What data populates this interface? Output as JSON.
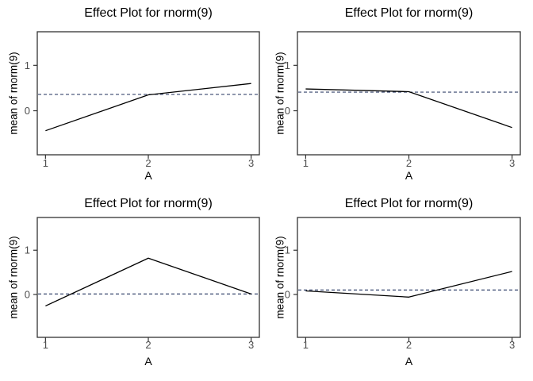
{
  "figure": {
    "background": "#ffffff",
    "line_color": "#000000",
    "reference_line_color": "#37466e",
    "panel_border_color": "#333333",
    "tick_color": "#333333",
    "tick_label_color": "#4d4d4d",
    "title_color": "#000000"
  },
  "chart_data": [
    {
      "type": "line",
      "title": "Effect Plot for rnorm(9)",
      "xlabel": "A",
      "ylabel": "mean of rnorm(9)",
      "x": [
        1,
        2,
        3
      ],
      "y": [
        -0.44,
        0.35,
        0.6
      ],
      "reference_line_y": 0.36,
      "reference_line_style": "dashed",
      "x_ticks": [
        "1",
        "2",
        "3"
      ],
      "y_ticks": [
        "0",
        "1"
      ],
      "y_tick_values": [
        0,
        1
      ],
      "xlim": [
        0.92,
        3.08
      ],
      "ylim": [
        -0.97,
        1.74
      ],
      "grid": false,
      "legend": "none"
    },
    {
      "type": "line",
      "title": "Effect Plot for rnorm(9)",
      "xlabel": "A",
      "ylabel": "mean of rnorm(9)",
      "x": [
        1,
        2,
        3
      ],
      "y": [
        0.48,
        0.42,
        -0.37
      ],
      "reference_line_y": 0.41,
      "reference_line_style": "dashed",
      "x_ticks": [
        "1",
        "2",
        "3"
      ],
      "y_ticks": [
        "0",
        "1"
      ],
      "y_tick_values": [
        0,
        1
      ],
      "xlim": [
        0.92,
        3.08
      ],
      "ylim": [
        -0.97,
        1.74
      ],
      "grid": false,
      "legend": "none"
    },
    {
      "type": "line",
      "title": "Effect Plot for rnorm(9)",
      "xlabel": "A",
      "ylabel": "mean of rnorm(9)",
      "x": [
        1,
        2,
        3
      ],
      "y": [
        -0.26,
        0.82,
        0.01
      ],
      "reference_line_y": 0.01,
      "reference_line_style": "dashed",
      "x_ticks": [
        "1",
        "2",
        "3"
      ],
      "y_ticks": [
        "0",
        "1"
      ],
      "y_tick_values": [
        0,
        1
      ],
      "xlim": [
        0.92,
        3.08
      ],
      "ylim": [
        -0.97,
        1.74
      ],
      "grid": false,
      "legend": "none"
    },
    {
      "type": "line",
      "title": "Effect Plot for rnorm(9)",
      "xlabel": "A",
      "ylabel": "mean of rnorm(9)",
      "x": [
        1,
        2,
        3
      ],
      "y": [
        0.08,
        -0.06,
        0.52
      ],
      "reference_line_y": 0.1,
      "reference_line_style": "dashed",
      "x_ticks": [
        "1",
        "2",
        "3"
      ],
      "y_ticks": [
        "0",
        "1"
      ],
      "y_tick_values": [
        0,
        1
      ],
      "xlim": [
        0.92,
        3.08
      ],
      "ylim": [
        -0.97,
        1.74
      ],
      "grid": false,
      "legend": "none"
    }
  ]
}
